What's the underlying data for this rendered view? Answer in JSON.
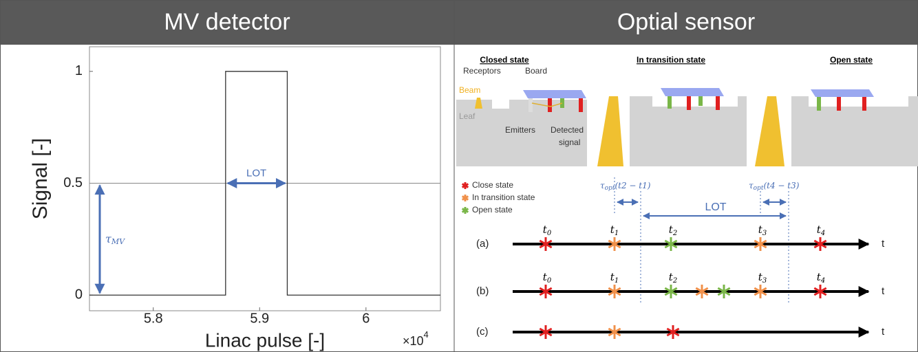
{
  "headers": [
    "MV detector",
    "Optial sensor"
  ],
  "chart_data": {
    "type": "line",
    "x_label": "Linac pulse [-]",
    "y_label": "Signal [-]",
    "x_multiplier": {
      "base": "×10",
      "sup": "4"
    },
    "x": [
      57400,
      58680,
      58680,
      59260,
      59260,
      60700
    ],
    "values": [
      0,
      0,
      1,
      1,
      0,
      0
    ],
    "color": "#333333",
    "xlim": [
      57400,
      60700
    ],
    "ylim": [
      -0.07,
      1.11
    ],
    "xticks": [
      {
        "value": 58000,
        "label": "5.8"
      },
      {
        "value": 59000,
        "label": "5.9"
      },
      {
        "value": 60000,
        "label": "6"
      }
    ],
    "yticks": [
      0,
      0.5,
      1
    ],
    "hline": 0.5,
    "annotations": {
      "lot": "LOT",
      "tau_mv": {
        "base": "τ",
        "sub": "MV"
      }
    }
  },
  "diagram": {
    "states": [
      "Closed state",
      "In transition state",
      "Open state"
    ],
    "parts": {
      "receptors": "Receptors",
      "board": "Board",
      "beam": "Beam",
      "leaf": "Leaf",
      "emitters": "Emitters",
      "detected_signal": [
        "Detected",
        "signal"
      ]
    },
    "legend": [
      "Close state",
      "In transition state",
      "Open state"
    ],
    "tau_labels": [
      {
        "base": "τ",
        "sub": "opt",
        "rest": "(t2 − t1)"
      },
      {
        "base": "τ",
        "sub": "opt",
        "rest": "(t4 − t3)"
      }
    ],
    "lot": "LOT",
    "rows": [
      {
        "label": "(a)",
        "axis": "t",
        "times": [
          {
            "base": "t",
            "sub": "0"
          },
          {
            "base": "t",
            "sub": "1"
          },
          {
            "base": "t",
            "sub": "2"
          },
          {
            "base": "t",
            "sub": "3"
          },
          {
            "base": "t",
            "sub": "4"
          }
        ]
      },
      {
        "label": "(b)",
        "axis": "t",
        "times": [
          {
            "base": "t",
            "sub": "0"
          },
          {
            "base": "t",
            "sub": "1"
          },
          {
            "base": "t",
            "sub": "2"
          },
          {
            "base": "t",
            "sub": "3"
          },
          {
            "base": "t",
            "sub": "4"
          }
        ]
      },
      {
        "label": "(c)",
        "axis": "t",
        "times": []
      }
    ]
  }
}
